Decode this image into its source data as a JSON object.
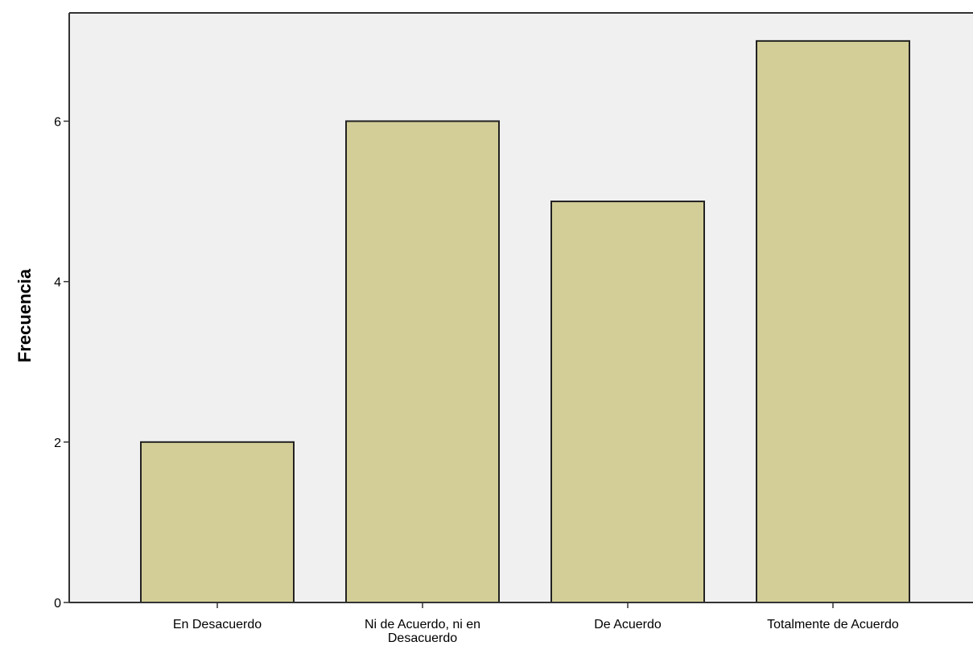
{
  "chart_data": {
    "type": "bar",
    "categories": [
      [
        "En Desacuerdo"
      ],
      [
        "Ni de Acuerdo, ni en",
        "Desacuerdo"
      ],
      [
        "De Acuerdo"
      ],
      [
        "Totalmente de Acuerdo"
      ]
    ],
    "values": [
      2,
      6,
      5,
      7
    ],
    "title": "",
    "xlabel": "",
    "ylabel": "Frecuencia",
    "ylim": [
      0,
      7.35
    ],
    "yticks": [
      0,
      2,
      4,
      6
    ],
    "grid": false,
    "colors": {
      "plot_background": "#f0f0f0",
      "bar_fill": "#d3ce97",
      "bar_stroke": "#222222",
      "axis": "#333333"
    }
  }
}
